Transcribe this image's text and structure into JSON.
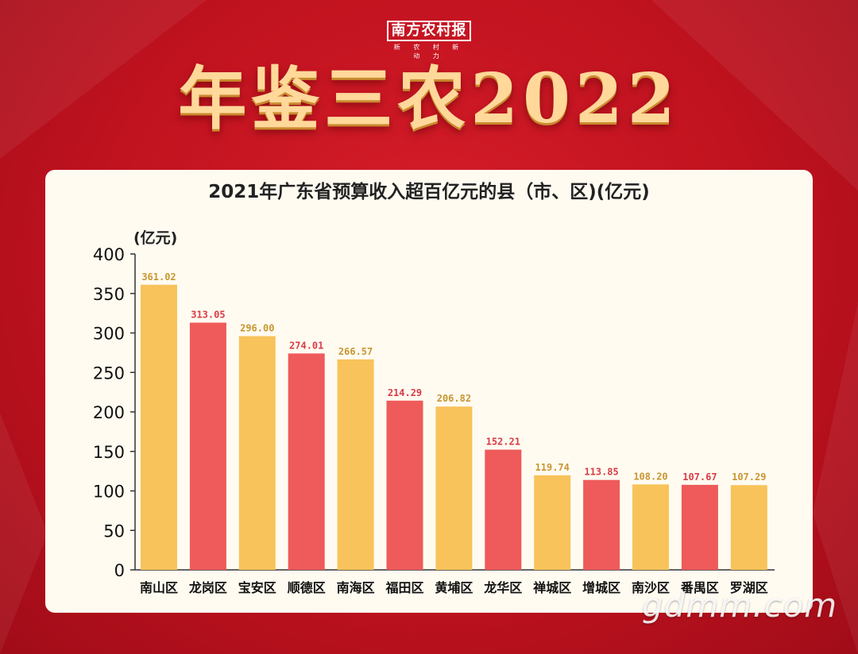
{
  "header": {
    "logo_text": "南方农村报",
    "logo_sub": "新 农 村 新 动 力",
    "headline": "年鉴三农2022"
  },
  "colors": {
    "background": "#c0121f",
    "bar_yellow": "#f8c35a",
    "bar_red": "#ef5a5a",
    "label_yellow": "#c9962f",
    "label_red": "#d83c45"
  },
  "watermark": "gdmm.com",
  "chart_data": {
    "type": "bar",
    "title": "2021年广东省预算收入超百亿元的县（市、区)(亿元)",
    "ylabel": "(亿元)",
    "ylim": [
      0,
      400
    ],
    "yticks": [
      0,
      50,
      100,
      150,
      200,
      250,
      300,
      350,
      400
    ],
    "categories": [
      "南山区",
      "龙岗区",
      "宝安区",
      "顺德区",
      "南海区",
      "福田区",
      "黄埔区",
      "龙华区",
      "禅城区",
      "增城区",
      "南沙区",
      "番禺区",
      "罗湖区"
    ],
    "values": [
      361.02,
      313.05,
      296.0,
      274.01,
      266.57,
      214.29,
      206.82,
      152.21,
      119.74,
      113.85,
      108.2,
      107.67,
      107.29
    ],
    "value_labels": [
      "361.02",
      "313.05",
      "296.00",
      "274.01",
      "266.57",
      "214.29",
      "206.82",
      "152.21",
      "119.74",
      "113.85",
      "108.20",
      "107.67",
      "107.29"
    ],
    "bar_colors": [
      "yellow",
      "red",
      "yellow",
      "red",
      "yellow",
      "red",
      "yellow",
      "red",
      "yellow",
      "red",
      "yellow",
      "red",
      "yellow"
    ],
    "grid": false,
    "legend": "none"
  }
}
